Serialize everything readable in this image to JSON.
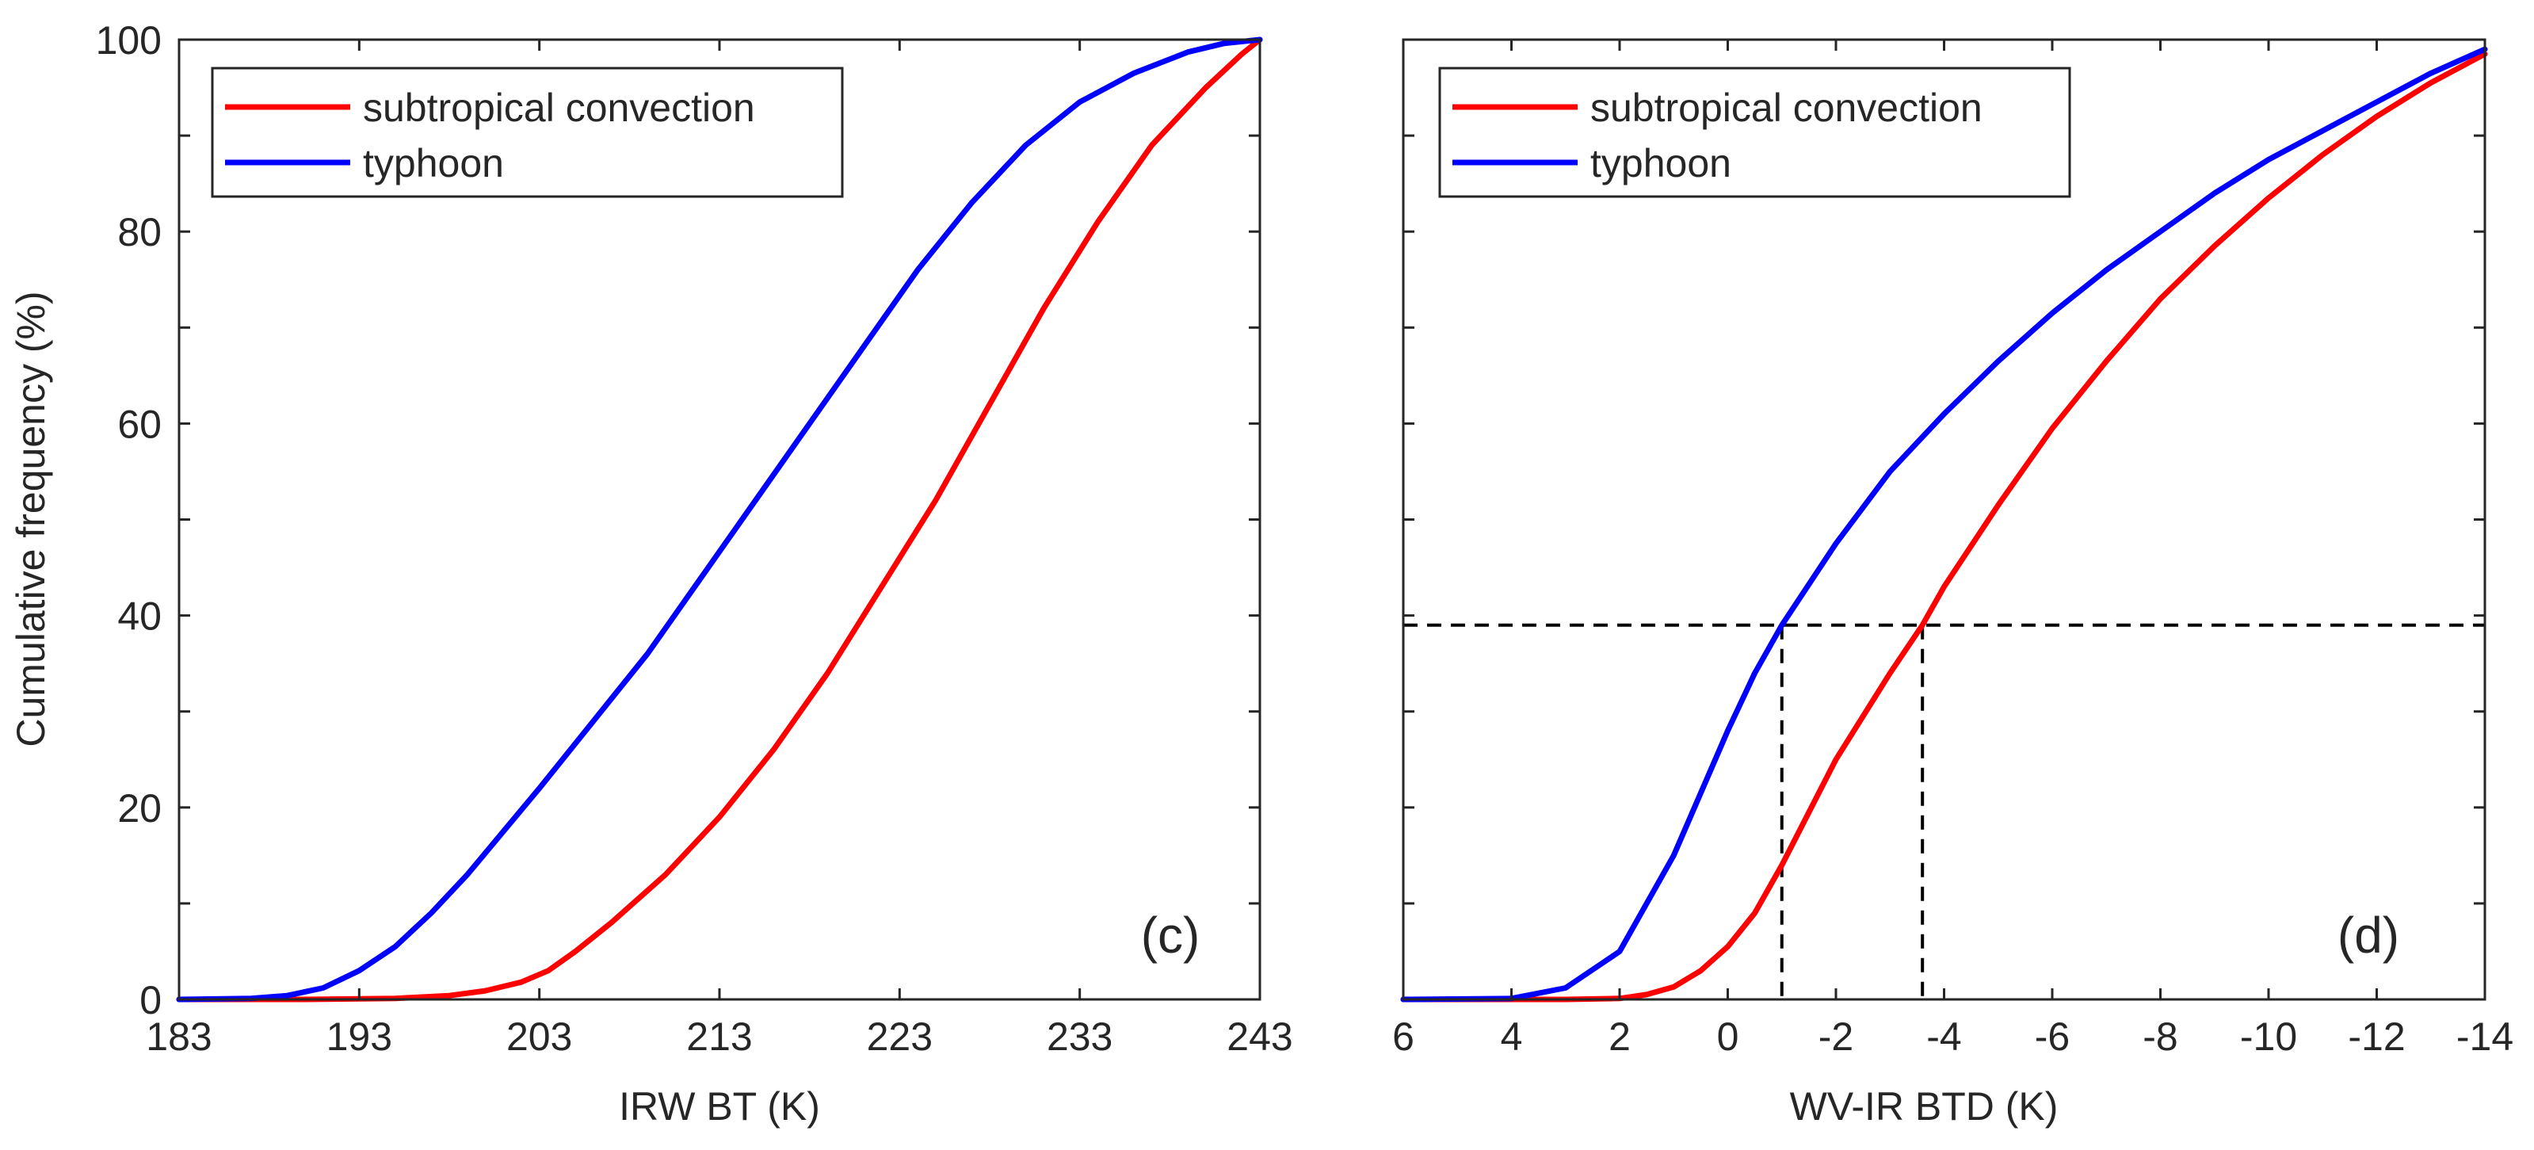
{
  "chart_data": [
    {
      "type": "line",
      "panel_label": "(c)",
      "xlabel": "IRW BT (K)",
      "ylabel": "Cumulative frequency (%)",
      "xlim": [
        183,
        243
      ],
      "ylim": [
        0,
        100
      ],
      "xticks": [
        183,
        193,
        203,
        213,
        223,
        233,
        243
      ],
      "xtick_labels": [
        "183",
        "193",
        "203",
        "213",
        "223",
        "233",
        "243"
      ],
      "yticks": [
        0,
        20,
        40,
        60,
        80,
        100
      ],
      "ytick_labels": [
        "0",
        "20",
        "40",
        "60",
        "80",
        "100"
      ],
      "legend_position": "top-left",
      "series": [
        {
          "name": "subtropical convection",
          "color": "#ff0000",
          "x": [
            183,
            190,
            195,
            198,
            200,
            202,
            203.5,
            205,
            207,
            210,
            213,
            216,
            219,
            222,
            225,
            228,
            231,
            234,
            237,
            240,
            242,
            243
          ],
          "y": [
            0,
            0,
            0.1,
            0.4,
            0.9,
            1.8,
            3,
            5,
            8,
            13,
            19,
            26,
            34,
            43,
            52,
            62,
            72,
            81,
            89,
            95,
            98.5,
            100
          ]
        },
        {
          "name": "typhoon",
          "color": "#0000ff",
          "x": [
            183,
            187,
            189,
            191,
            193,
            195,
            197,
            199,
            201,
            203,
            206,
            209,
            212,
            215,
            218,
            221,
            224,
            227,
            230,
            233,
            236,
            239,
            241,
            243
          ],
          "y": [
            0,
            0.1,
            0.4,
            1.2,
            3,
            5.5,
            9,
            13,
            17.5,
            22,
            29,
            36,
            44,
            52,
            60,
            68,
            76,
            83,
            89,
            93.5,
            96.5,
            98.7,
            99.6,
            100
          ]
        }
      ]
    },
    {
      "type": "line",
      "panel_label": "(d)",
      "xlabel": "WV-IR BTD (K)",
      "ylabel": "",
      "xlim": [
        6,
        -14
      ],
      "ylim": [
        0,
        100
      ],
      "xticks": [
        6,
        4,
        2,
        0,
        -2,
        -4,
        -6,
        -8,
        -10,
        -12,
        -14
      ],
      "xtick_labels": [
        "6",
        "4",
        "2",
        "0",
        "-2",
        "-4",
        "-6",
        "-8",
        "-10",
        "-12",
        "-14"
      ],
      "yticks": [
        0,
        20,
        40,
        60,
        80,
        100
      ],
      "legend_position": "top-left",
      "series": [
        {
          "name": "subtropical convection",
          "color": "#ff0000",
          "x": [
            6,
            3,
            2,
            1.5,
            1,
            0.5,
            0,
            -0.5,
            -1,
            -2,
            -3,
            -3.6,
            -4,
            -5,
            -6,
            -7,
            -8,
            -9,
            -10,
            -11,
            -12,
            -13,
            -14
          ],
          "y": [
            0,
            0,
            0.1,
            0.5,
            1.3,
            3,
            5.5,
            9,
            14,
            25,
            34,
            39,
            43,
            51.5,
            59.5,
            66.5,
            73,
            78.5,
            83.5,
            88,
            92,
            95.5,
            98.5
          ]
        },
        {
          "name": "typhoon",
          "color": "#0000ff",
          "x": [
            6,
            4,
            3,
            2,
            1,
            0.5,
            0,
            -0.5,
            -1,
            -2,
            -3,
            -4,
            -5,
            -6,
            -7,
            -8,
            -9,
            -10,
            -11,
            -12,
            -13,
            -14
          ],
          "y": [
            0,
            0.1,
            1.2,
            5,
            15,
            21.5,
            28,
            34,
            39,
            47.5,
            55,
            61,
            66.5,
            71.5,
            76,
            80,
            84,
            87.5,
            90.5,
            93.5,
            96.5,
            99
          ]
        }
      ],
      "reference_lines": {
        "style": "dashed",
        "y": 39,
        "x": [
          -1,
          -3.6
        ]
      }
    }
  ],
  "legend": {
    "entries": [
      "subtropical convection",
      "typhoon"
    ],
    "colors": [
      "#ff0000",
      "#0000ff"
    ]
  }
}
